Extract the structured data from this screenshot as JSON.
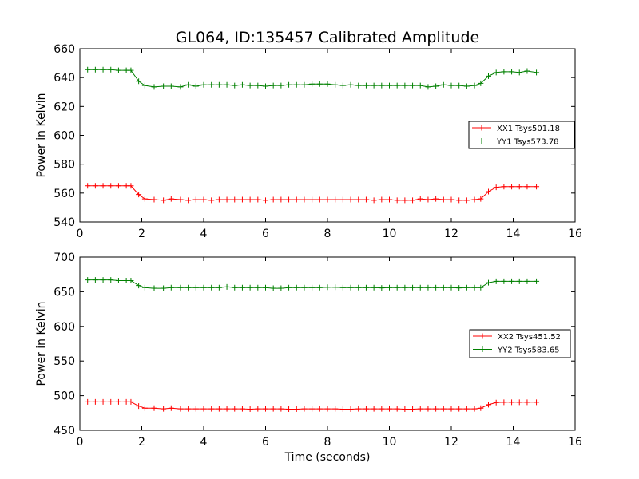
{
  "figure_title": "GL064, ID:135457 Calibrated Amplitude",
  "colors": {
    "xx": "#ff0000",
    "yy": "#008000"
  },
  "chart_data": [
    {
      "type": "line",
      "title": "GL064, ID:135457 Calibrated Amplitude",
      "xlabel": "",
      "ylabel": "Power in Kelvin",
      "xlim": [
        0,
        16
      ],
      "ylim": [
        540,
        660
      ],
      "xticks": [
        0,
        2,
        4,
        6,
        8,
        10,
        12,
        14,
        16
      ],
      "yticks": [
        540,
        560,
        580,
        600,
        620,
        640,
        660
      ],
      "grid": false,
      "legend_position": "right",
      "series": [
        {
          "name": "XX1 Tsys501.18",
          "color": "#ff0000",
          "marker": "plus",
          "x": [
            0.25,
            0.5,
            0.75,
            1.0,
            1.25,
            1.5,
            1.65,
            1.9,
            2.1,
            2.4,
            2.7,
            2.95,
            3.25,
            3.5,
            3.75,
            4.0,
            4.25,
            4.5,
            4.75,
            5.0,
            5.25,
            5.5,
            5.75,
            6.0,
            6.25,
            6.5,
            6.75,
            7.0,
            7.25,
            7.5,
            7.75,
            8.0,
            8.25,
            8.5,
            8.75,
            9.0,
            9.25,
            9.5,
            9.75,
            10.0,
            10.25,
            10.5,
            10.75,
            11.0,
            11.25,
            11.5,
            11.75,
            12.0,
            12.25,
            12.5,
            12.75,
            12.95,
            13.2,
            13.45,
            13.7,
            13.95,
            14.2,
            14.45,
            14.75
          ],
          "y": [
            565,
            565,
            565,
            565,
            565,
            565,
            565,
            559,
            556,
            555.5,
            555,
            556,
            555.5,
            555,
            555.5,
            555.5,
            555,
            555.5,
            555.5,
            555.5,
            555.5,
            555.5,
            555.5,
            555,
            555.5,
            555.5,
            555.5,
            555.5,
            555.5,
            555.5,
            555.5,
            555.5,
            555.5,
            555.5,
            555.5,
            555.5,
            555.5,
            555,
            555.5,
            555.5,
            555,
            555,
            555,
            556,
            555.5,
            556,
            555.5,
            555.5,
            555,
            555,
            555.5,
            556,
            561,
            564,
            564.5,
            564.5,
            564.5,
            564.5,
            564.5
          ]
        },
        {
          "name": "YY1 Tsys573.78",
          "color": "#008000",
          "marker": "plus",
          "x": [
            0.25,
            0.5,
            0.75,
            1.0,
            1.25,
            1.5,
            1.65,
            1.9,
            2.1,
            2.4,
            2.7,
            2.95,
            3.25,
            3.5,
            3.75,
            4.0,
            4.25,
            4.5,
            4.75,
            5.0,
            5.25,
            5.5,
            5.75,
            6.0,
            6.25,
            6.5,
            6.75,
            7.0,
            7.25,
            7.5,
            7.75,
            8.0,
            8.25,
            8.5,
            8.75,
            9.0,
            9.25,
            9.5,
            9.75,
            10.0,
            10.25,
            10.5,
            10.75,
            11.0,
            11.25,
            11.5,
            11.75,
            12.0,
            12.25,
            12.5,
            12.75,
            12.95,
            13.2,
            13.45,
            13.7,
            13.95,
            14.2,
            14.45,
            14.75
          ],
          "y": [
            645.5,
            645.5,
            645.5,
            645.5,
            645,
            645,
            645,
            637.5,
            634.5,
            633.5,
            634,
            634,
            633.5,
            635,
            634,
            635,
            635,
            635,
            635,
            634.5,
            635,
            634.5,
            634.5,
            634,
            634.5,
            634.5,
            635,
            635,
            635,
            635.5,
            635.5,
            635.5,
            635,
            634.5,
            635,
            634.5,
            634.5,
            634.5,
            634.5,
            634.5,
            634.5,
            634.5,
            634.5,
            634.5,
            633.5,
            634,
            635,
            634.5,
            634.5,
            634,
            634.5,
            636,
            641,
            643.5,
            644,
            644,
            643.5,
            644.5,
            643.5
          ]
        }
      ]
    },
    {
      "type": "line",
      "title": "",
      "xlabel": "Time (seconds)",
      "ylabel": "Power in Kelvin",
      "xlim": [
        0,
        16
      ],
      "ylim": [
        450,
        700
      ],
      "xticks": [
        0,
        2,
        4,
        6,
        8,
        10,
        12,
        14,
        16
      ],
      "yticks": [
        450,
        500,
        550,
        600,
        650,
        700
      ],
      "grid": false,
      "legend_position": "right",
      "series": [
        {
          "name": "XX2 Tsys451.52",
          "color": "#ff0000",
          "marker": "plus",
          "x": [
            0.25,
            0.5,
            0.75,
            1.0,
            1.25,
            1.5,
            1.65,
            1.9,
            2.1,
            2.4,
            2.7,
            2.95,
            3.25,
            3.5,
            3.75,
            4.0,
            4.25,
            4.5,
            4.75,
            5.0,
            5.25,
            5.5,
            5.75,
            6.0,
            6.25,
            6.5,
            6.75,
            7.0,
            7.25,
            7.5,
            7.75,
            8.0,
            8.25,
            8.5,
            8.75,
            9.0,
            9.25,
            9.5,
            9.75,
            10.0,
            10.25,
            10.5,
            10.75,
            11.0,
            11.25,
            11.5,
            11.75,
            12.0,
            12.25,
            12.5,
            12.75,
            12.95,
            13.2,
            13.45,
            13.7,
            13.95,
            14.2,
            14.45,
            14.75
          ],
          "y": [
            491,
            491,
            491,
            491,
            491,
            491,
            491,
            485,
            482,
            482,
            481,
            482,
            481,
            481,
            481,
            481,
            481,
            481,
            481,
            481,
            481,
            480.5,
            481,
            481,
            481,
            481,
            480.5,
            480.5,
            481,
            481,
            481,
            481,
            481,
            480.5,
            480.5,
            481,
            481,
            481,
            481,
            481,
            481,
            480.5,
            480.5,
            481,
            481,
            481,
            481,
            481,
            481,
            481,
            481,
            482,
            487,
            490,
            490.5,
            490.5,
            490.5,
            490.5,
            490.5
          ]
        },
        {
          "name": "YY2 Tsys583.65",
          "color": "#008000",
          "marker": "plus",
          "x": [
            0.25,
            0.5,
            0.75,
            1.0,
            1.25,
            1.5,
            1.65,
            1.9,
            2.1,
            2.4,
            2.7,
            2.95,
            3.25,
            3.5,
            3.75,
            4.0,
            4.25,
            4.5,
            4.75,
            5.0,
            5.25,
            5.5,
            5.75,
            6.0,
            6.25,
            6.5,
            6.75,
            7.0,
            7.25,
            7.5,
            7.75,
            8.0,
            8.25,
            8.5,
            8.75,
            9.0,
            9.25,
            9.5,
            9.75,
            10.0,
            10.25,
            10.5,
            10.75,
            11.0,
            11.25,
            11.5,
            11.75,
            12.0,
            12.25,
            12.5,
            12.75,
            12.95,
            13.2,
            13.45,
            13.7,
            13.95,
            14.2,
            14.45,
            14.75
          ],
          "y": [
            667,
            667,
            667,
            667,
            666,
            666,
            666,
            659,
            656,
            655,
            655,
            656,
            656,
            656,
            656,
            656,
            656,
            656,
            657,
            656,
            656,
            656,
            656,
            656,
            655,
            655,
            656,
            656,
            656,
            656,
            656,
            656.5,
            656.5,
            656,
            656,
            656,
            656,
            656,
            655.5,
            656,
            656,
            656,
            656,
            656,
            656,
            656,
            656,
            656,
            655.5,
            656,
            656,
            656,
            663,
            665,
            665,
            665,
            665,
            665,
            665
          ]
        }
      ]
    }
  ]
}
